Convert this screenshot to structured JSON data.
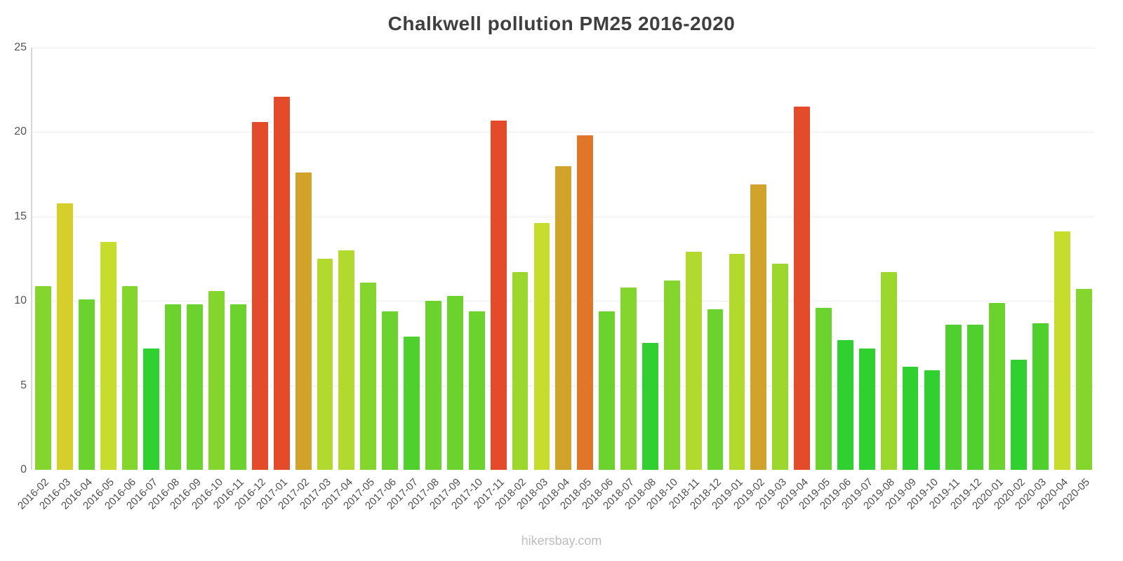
{
  "chart": {
    "title": "Chalkwell pollution PM25 2016-2020"
  },
  "footer": {
    "source": "hikersbay.com"
  },
  "chart_data": {
    "type": "bar",
    "title": "Chalkwell pollution PM25 2016-2020",
    "xlabel": "",
    "ylabel": "",
    "ylim": [
      0,
      25
    ],
    "y_ticks": [
      0,
      5,
      10,
      15,
      20,
      25
    ],
    "grid": true,
    "legend": false,
    "categories": [
      "2016-02",
      "2016-03",
      "2016-04",
      "2016-05",
      "2016-06",
      "2016-07",
      "2016-08",
      "2016-09",
      "2016-10",
      "2016-11",
      "2016-12",
      "2017-01",
      "2017-02",
      "2017-03",
      "2017-04",
      "2017-05",
      "2017-06",
      "2017-07",
      "2017-08",
      "2017-09",
      "2017-10",
      "2017-11",
      "2018-02",
      "2018-03",
      "2018-04",
      "2018-05",
      "2018-06",
      "2018-07",
      "2018-08",
      "2018-10",
      "2018-11",
      "2018-12",
      "2019-01",
      "2019-02",
      "2019-03",
      "2019-04",
      "2019-05",
      "2019-06",
      "2019-07",
      "2019-08",
      "2019-09",
      "2019-10",
      "2019-11",
      "2019-12",
      "2020-01",
      "2020-02",
      "2020-03",
      "2020-04",
      "2020-05"
    ],
    "values": [
      10.9,
      15.8,
      10.1,
      13.5,
      10.9,
      7.2,
      9.8,
      9.8,
      10.6,
      9.8,
      20.6,
      22.1,
      17.6,
      12.5,
      13.0,
      11.1,
      9.4,
      7.9,
      10.0,
      10.3,
      9.4,
      20.7,
      11.7,
      14.6,
      18.0,
      19.8,
      9.4,
      10.8,
      7.5,
      11.2,
      12.9,
      9.5,
      12.8,
      16.9,
      12.2,
      21.5,
      9.6,
      7.7,
      7.2,
      11.7,
      6.1,
      5.9,
      8.6,
      8.6,
      9.9,
      6.5,
      8.7,
      14.1,
      10.7
    ],
    "color_scale": [
      {
        "max": 7.8,
        "color": "#2fd02f"
      },
      {
        "max": 9.0,
        "color": "#4fd02e"
      },
      {
        "max": 10.4,
        "color": "#6bd22e"
      },
      {
        "max": 11.4,
        "color": "#84d52e"
      },
      {
        "max": 12.4,
        "color": "#9cd72e"
      },
      {
        "max": 13.4,
        "color": "#b2da2e"
      },
      {
        "max": 15.0,
        "color": "#c6dd2e"
      },
      {
        "max": 16.3,
        "color": "#d6cf2b"
      },
      {
        "max": 18.6,
        "color": "#d2a32a"
      },
      {
        "max": 20.0,
        "color": "#e0762a"
      },
      {
        "max": 999,
        "color": "#e34b2b"
      }
    ]
  }
}
